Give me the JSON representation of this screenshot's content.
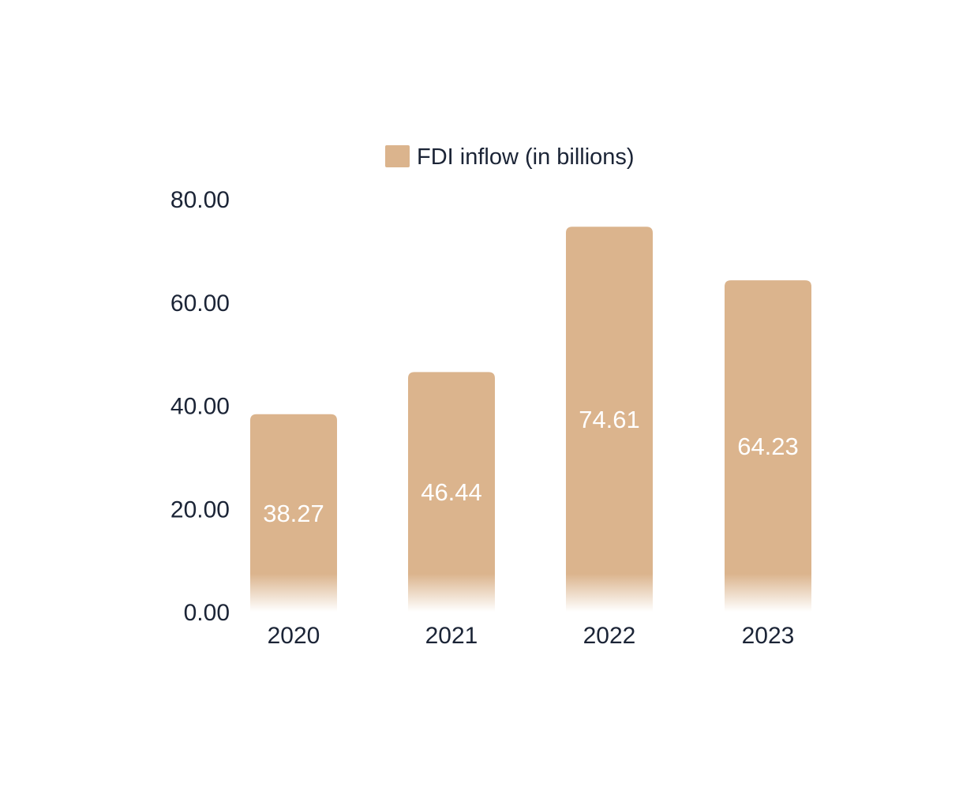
{
  "chart_data": {
    "type": "bar",
    "title": "",
    "xlabel": "",
    "ylabel": "",
    "categories": [
      "2020",
      "2021",
      "2022",
      "2023"
    ],
    "series": [
      {
        "name": "FDI inflow (in billions)",
        "values": [
          38.27,
          46.44,
          74.61,
          64.23
        ],
        "data_labels": [
          "38.27",
          "46.44",
          "74.61",
          "64.23"
        ]
      }
    ],
    "ylim": [
      0,
      80
    ],
    "y_ticks": [
      "0.00",
      "20.00",
      "40.00",
      "60.00",
      "80.00"
    ],
    "grid": false,
    "legend": {
      "placement": "top-center",
      "label": "FDI inflow (in billions)"
    },
    "colors": {
      "bar": "#dbb48d",
      "data_label": "#ffffff",
      "axis_text": "#1b2436",
      "background": "#ffffff"
    }
  }
}
